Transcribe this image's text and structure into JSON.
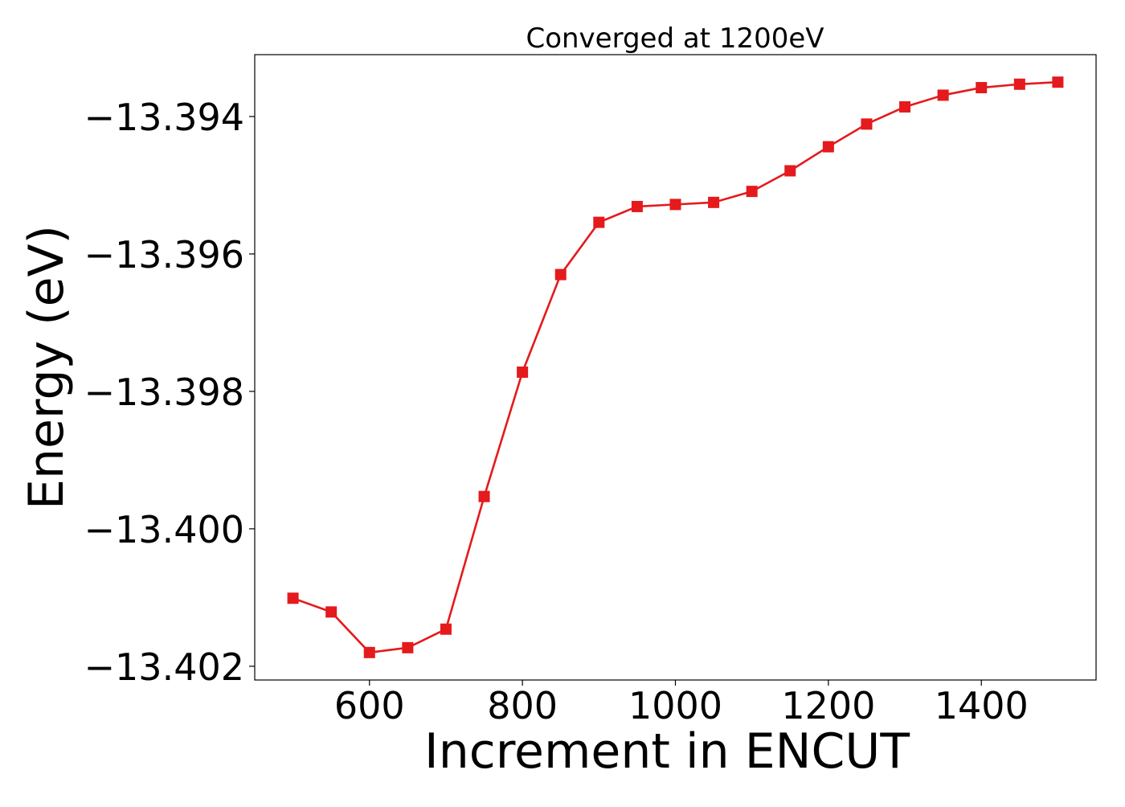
{
  "chart_data": {
    "type": "line",
    "title": "Converged at 1200eV",
    "xlabel": "Increment in ENCUT",
    "ylabel": "Energy (eV)",
    "xlim": [
      450,
      1550
    ],
    "ylim": [
      -13.4022,
      -13.3931
    ],
    "x_ticks": [
      600,
      800,
      1000,
      1200,
      1400
    ],
    "y_ticks": [
      -13.394,
      -13.396,
      -13.398,
      -13.4,
      -13.402
    ],
    "y_tick_labels": [
      "−13.394",
      "−13.396",
      "−13.398",
      "−13.400",
      "−13.402"
    ],
    "grid": false,
    "legend": "none",
    "color": "#e41a1c",
    "marker": "square",
    "series": [
      {
        "x": [
          500,
          550,
          600,
          650,
          700,
          750,
          800,
          850,
          900,
          950,
          1000,
          1050,
          1100,
          1150,
          1200,
          1250,
          1300,
          1350,
          1400,
          1450,
          1500
        ],
        "values": [
          -13.40101,
          -13.40121,
          -13.4018,
          -13.40173,
          -13.40146,
          -13.39953,
          -13.39772,
          -13.3963,
          -13.39554,
          -13.39531,
          -13.39528,
          -13.39525,
          -13.39509,
          -13.39479,
          -13.39444,
          -13.39411,
          -13.39386,
          -13.39369,
          -13.39358,
          -13.39353,
          -13.3935
        ]
      }
    ]
  }
}
